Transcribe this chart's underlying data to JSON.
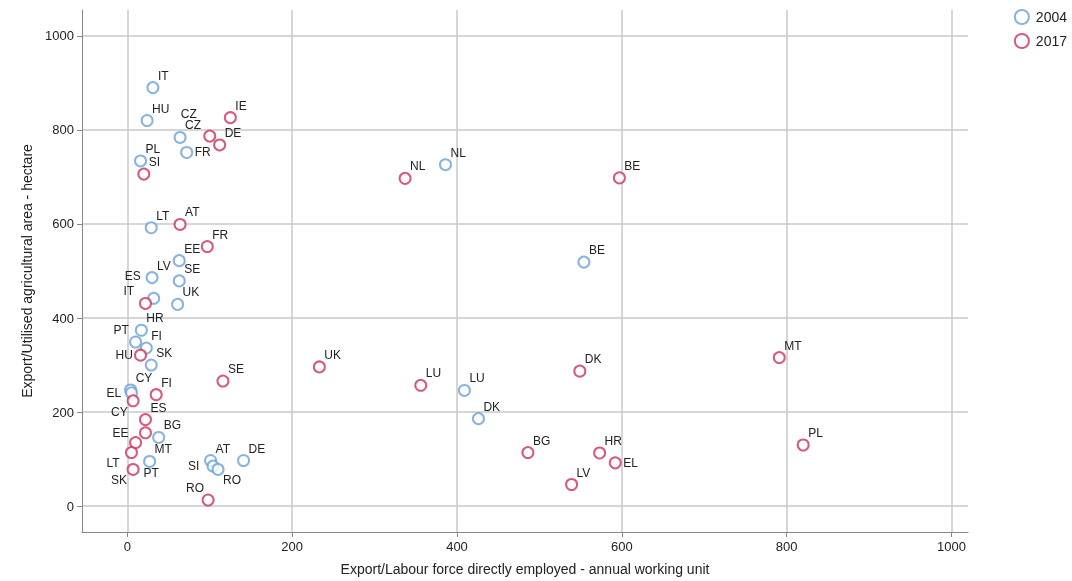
{
  "chart_data": {
    "type": "scatter",
    "xlabel": "Export/Labour force directly employed - annual working unit",
    "ylabel": "Export/Utilised agricultural area - hectare",
    "xlim": [
      -55,
      1020
    ],
    "xticks": [
      0,
      200,
      400,
      600,
      800,
      1000
    ],
    "ylim": [
      -55,
      1055
    ],
    "yticks": [
      0,
      200,
      400,
      600,
      800,
      1000
    ],
    "grid": true,
    "legend": "top right",
    "marker": "circle",
    "series": [
      {
        "name": "2004",
        "color": "#6a9fd8",
        "x": [
          31,
          24,
          64,
          72,
          16,
          29,
          63,
          30,
          63,
          32,
          61,
          386,
          554,
          409,
          426,
          17,
          10,
          23,
          29,
          4,
          5,
          27,
          38,
          101,
          104,
          110,
          141
        ],
        "values": [
          890,
          820,
          784,
          752,
          734,
          592,
          522,
          486,
          479,
          442,
          429,
          726,
          519,
          246,
          186,
          374,
          349,
          336,
          300,
          247,
          241,
          95,
          146,
          97,
          85,
          78,
          97
        ]
      },
      {
        "name": "2017",
        "color": "#d0305a",
        "x": [
          125,
          100,
          112,
          20,
          64,
          97,
          337,
          597,
          233,
          356,
          549,
          486,
          573,
          592,
          539,
          791,
          820,
          116,
          22,
          16,
          35,
          7,
          22,
          22,
          10,
          5,
          7,
          98
        ],
        "values": [
          826,
          787,
          768,
          706,
          599,
          552,
          697,
          698,
          296,
          257,
          287,
          114,
          113,
          92,
          46,
          316,
          130,
          266,
          431,
          321,
          237,
          224,
          184,
          156,
          135,
          114,
          78,
          13
        ]
      }
    ],
    "annotations": [
      {
        "text": "IT",
        "x": 31,
        "y": 890
      },
      {
        "text": "HU",
        "x": 24,
        "y": 820
      },
      {
        "text": "CZ",
        "x": 64,
        "y": 784
      },
      {
        "text": "FR",
        "x": 72,
        "y": 752
      },
      {
        "text": "PL",
        "x": 16,
        "y": 734
      },
      {
        "text": "LT",
        "x": 29,
        "y": 592
      },
      {
        "text": "EE",
        "x": 63,
        "y": 522
      },
      {
        "text": "LV",
        "x": 30,
        "y": 486
      },
      {
        "text": "SE",
        "x": 63,
        "y": 479
      },
      {
        "text": "ES",
        "x": 32,
        "y": 442
      },
      {
        "text": "UK",
        "x": 61,
        "y": 429
      },
      {
        "text": "NL",
        "x": 386,
        "y": 726
      },
      {
        "text": "BE",
        "x": 554,
        "y": 519
      },
      {
        "text": "LU",
        "x": 409,
        "y": 246
      },
      {
        "text": "DK",
        "x": 426,
        "y": 186
      },
      {
        "text": "HR",
        "x": 17,
        "y": 374
      },
      {
        "text": "PT",
        "x": 10,
        "y": 349
      },
      {
        "text": "FI",
        "x": 23,
        "y": 336
      },
      {
        "text": "SK",
        "x": 29,
        "y": 300
      },
      {
        "text": "CY",
        "x": 4,
        "y": 247
      },
      {
        "text": "EL",
        "x": 5,
        "y": 241
      },
      {
        "text": "MT",
        "x": 27,
        "y": 95
      },
      {
        "text": "BG",
        "x": 38,
        "y": 146
      },
      {
        "text": "AT",
        "x": 101,
        "y": 97
      },
      {
        "text": "SI",
        "x": 104,
        "y": 85
      },
      {
        "text": "RO",
        "x": 110,
        "y": 78
      },
      {
        "text": "DE",
        "x": 141,
        "y": 97
      },
      {
        "text": "IE",
        "x": 125,
        "y": 826
      },
      {
        "text": "CZ",
        "x": 100,
        "y": 787
      },
      {
        "text": "DE",
        "x": 112,
        "y": 768
      },
      {
        "text": "SI",
        "x": 20,
        "y": 706
      },
      {
        "text": "AT",
        "x": 64,
        "y": 599
      },
      {
        "text": "FR",
        "x": 97,
        "y": 552
      },
      {
        "text": "NL",
        "x": 337,
        "y": 697
      },
      {
        "text": "BE",
        "x": 597,
        "y": 698
      },
      {
        "text": "UK",
        "x": 233,
        "y": 296
      },
      {
        "text": "LU",
        "x": 356,
        "y": 257
      },
      {
        "text": "DK",
        "x": 549,
        "y": 287
      },
      {
        "text": "BG",
        "x": 486,
        "y": 114
      },
      {
        "text": "HR",
        "x": 573,
        "y": 113
      },
      {
        "text": "EL",
        "x": 592,
        "y": 92
      },
      {
        "text": "LV",
        "x": 539,
        "y": 46
      },
      {
        "text": "MT",
        "x": 791,
        "y": 316
      },
      {
        "text": "PL",
        "x": 820,
        "y": 130
      },
      {
        "text": "SE",
        "x": 116,
        "y": 266
      },
      {
        "text": "IT",
        "x": 22,
        "y": 431
      },
      {
        "text": "HU",
        "x": 16,
        "y": 321
      },
      {
        "text": "FI",
        "x": 35,
        "y": 237
      },
      {
        "text": "CY",
        "x": 7,
        "y": 224
      },
      {
        "text": "ES",
        "x": 22,
        "y": 184
      },
      {
        "text": "EE",
        "x": 22,
        "y": 156
      },
      {
        "text": "LT",
        "x": 10,
        "y": 135
      },
      {
        "text": "PT",
        "x": 5,
        "y": 114
      },
      {
        "text": "SK",
        "x": 7,
        "y": 78
      },
      {
        "text": "RO",
        "x": 98,
        "y": 13
      }
    ]
  }
}
